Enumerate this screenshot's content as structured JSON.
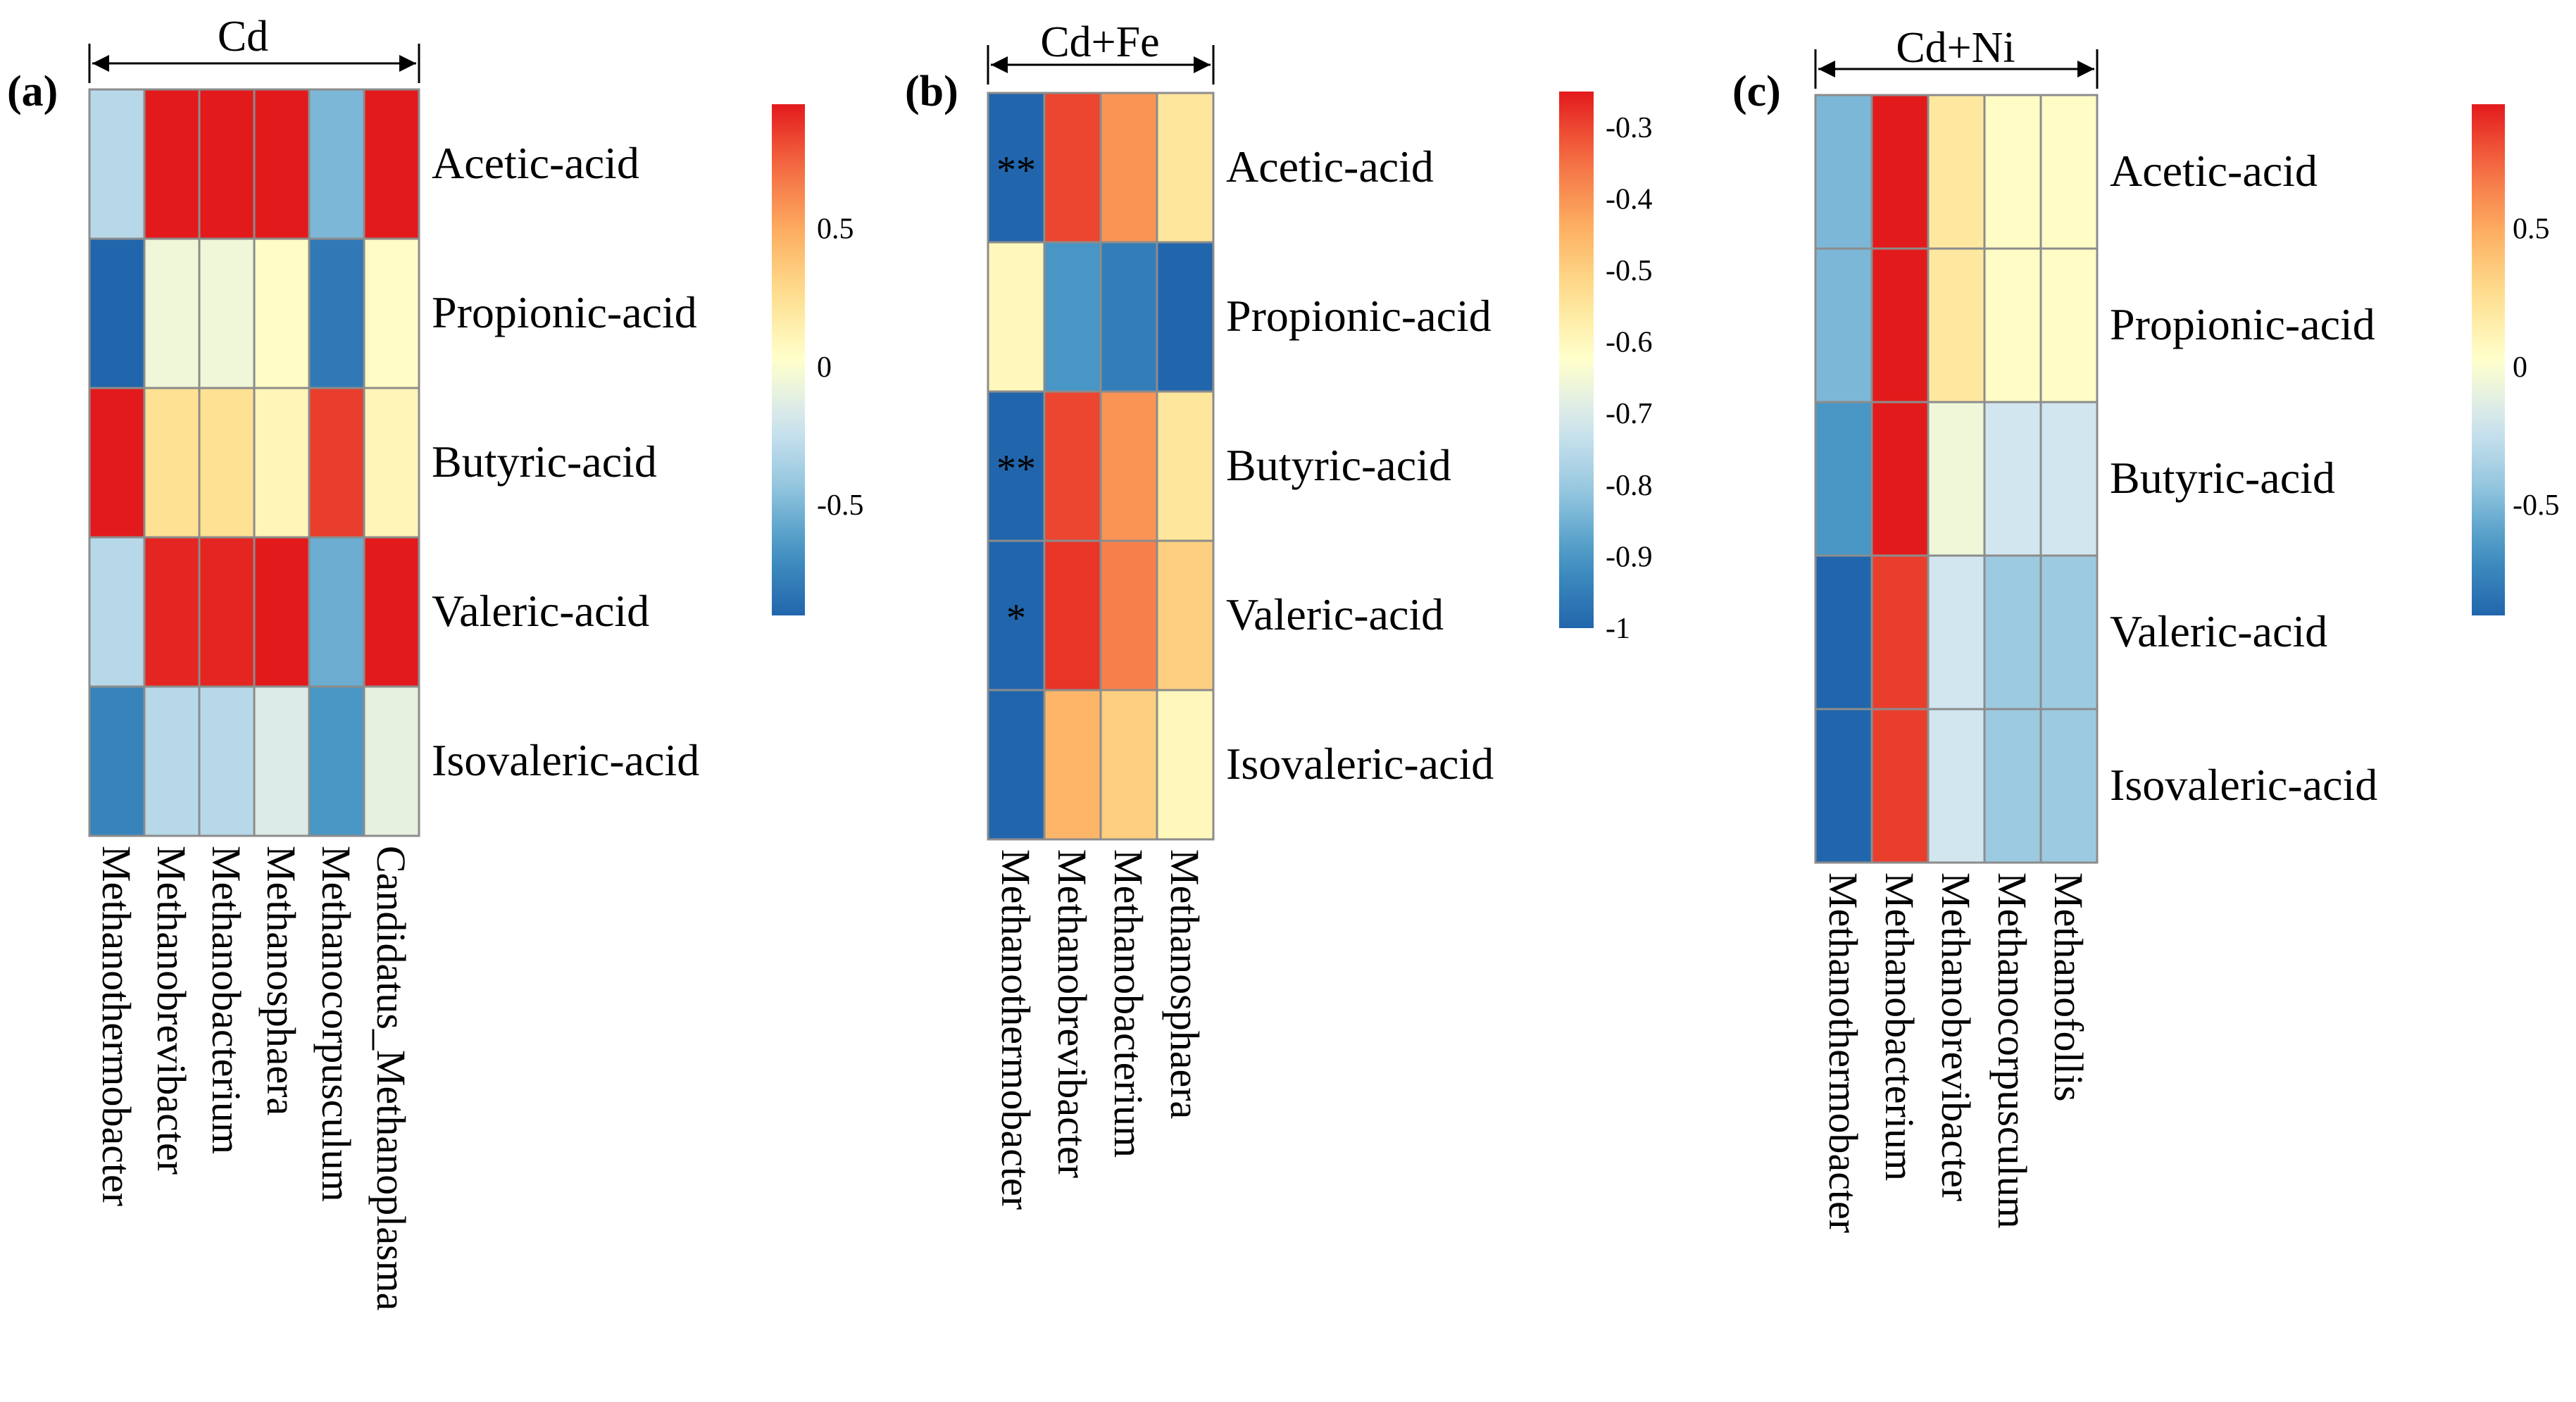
{
  "colors": {
    "scale": [
      "#2166ac",
      "#4393c3",
      "#92c5de",
      "#d1e5f0",
      "#ffffcc",
      "#fee090",
      "#fdae61",
      "#f46d43",
      "#e31a1c"
    ],
    "cell_border": "#8c8c8c"
  },
  "chart_data": [
    {
      "type": "heatmap",
      "panel": "(a)",
      "condition": "Cd",
      "rows": [
        "Acetic-acid",
        "Propionic-acid",
        "Butyric-acid",
        "Valeric-acid",
        "Isovaleric-acid"
      ],
      "columns": [
        "Methanothermobacter",
        "Methanobrevibacter",
        "Methanobacterium",
        "Methanosphaera",
        "Methanocorpusculum",
        "Candidatus_Methanoplasma"
      ],
      "values": [
        [
          -0.3,
          0.95,
          0.95,
          0.95,
          -0.5,
          0.95
        ],
        [
          -0.9,
          -0.05,
          -0.05,
          0.05,
          -0.8,
          0.05
        ],
        [
          0.95,
          0.25,
          0.25,
          0.1,
          0.85,
          0.1
        ],
        [
          -0.3,
          0.92,
          0.92,
          0.95,
          -0.55,
          0.95
        ],
        [
          -0.75,
          -0.3,
          -0.3,
          -0.15,
          -0.65,
          -0.1
        ]
      ],
      "annotations": [],
      "colorbar": {
        "range": [
          -0.9,
          0.95
        ],
        "ticks": [
          0.5,
          0,
          -0.5
        ],
        "tick_labels": [
          "0.5",
          "0",
          "-0.5"
        ]
      }
    },
    {
      "type": "heatmap",
      "panel": "(b)",
      "condition": "Cd+Fe",
      "rows": [
        "Acetic-acid",
        "Propionic-acid",
        "Butyric-acid",
        "Valeric-acid",
        "Isovaleric-acid"
      ],
      "columns": [
        "Methanothermobacter",
        "Methanobrevibacter",
        "Methanobacterium",
        "Methanosphaera"
      ],
      "values": [
        [
          -1.0,
          -0.3,
          -0.4,
          -0.55
        ],
        [
          -0.6,
          -0.9,
          -0.95,
          -1.0
        ],
        [
          -1.0,
          -0.3,
          -0.4,
          -0.55
        ],
        [
          -1.0,
          -0.28,
          -0.37,
          -0.5
        ],
        [
          -1.0,
          -0.45,
          -0.5,
          -0.6
        ]
      ],
      "annotations": [
        {
          "row": 0,
          "col": 0,
          "text": "**"
        },
        {
          "row": 2,
          "col": 0,
          "text": "**"
        },
        {
          "row": 3,
          "col": 0,
          "text": "*"
        }
      ],
      "colorbar": {
        "range": [
          -1.0,
          -0.25
        ],
        "ticks": [
          -0.3,
          -0.4,
          -0.5,
          -0.6,
          -0.7,
          -0.8,
          -0.9,
          -1
        ],
        "tick_labels": [
          "-0.3",
          "-0.4",
          "-0.5",
          "-0.6",
          "-0.7",
          "-0.8",
          "-0.9",
          "-1"
        ]
      }
    },
    {
      "type": "heatmap",
      "panel": "(c)",
      "condition": "Cd+Ni",
      "rows": [
        "Acetic-acid",
        "Propionic-acid",
        "Butyric-acid",
        "Valeric-acid",
        "Isovaleric-acid"
      ],
      "columns": [
        "Methanothermobacter",
        "Methanobacterium",
        "Methanobrevibacter",
        "Methanocorpusculum",
        "Methanofollis"
      ],
      "values": [
        [
          -0.5,
          0.95,
          0.2,
          0.05,
          0.05
        ],
        [
          -0.5,
          0.95,
          0.2,
          0.05,
          0.05
        ],
        [
          -0.65,
          0.95,
          -0.05,
          -0.2,
          -0.2
        ],
        [
          -0.9,
          0.85,
          -0.2,
          -0.4,
          -0.4
        ],
        [
          -0.9,
          0.85,
          -0.2,
          -0.4,
          -0.4
        ]
      ],
      "annotations": [],
      "colorbar": {
        "range": [
          -0.9,
          0.95
        ],
        "ticks": [
          0.5,
          0,
          -0.5
        ],
        "tick_labels": [
          "0.5",
          "0",
          "-0.5"
        ]
      }
    }
  ]
}
